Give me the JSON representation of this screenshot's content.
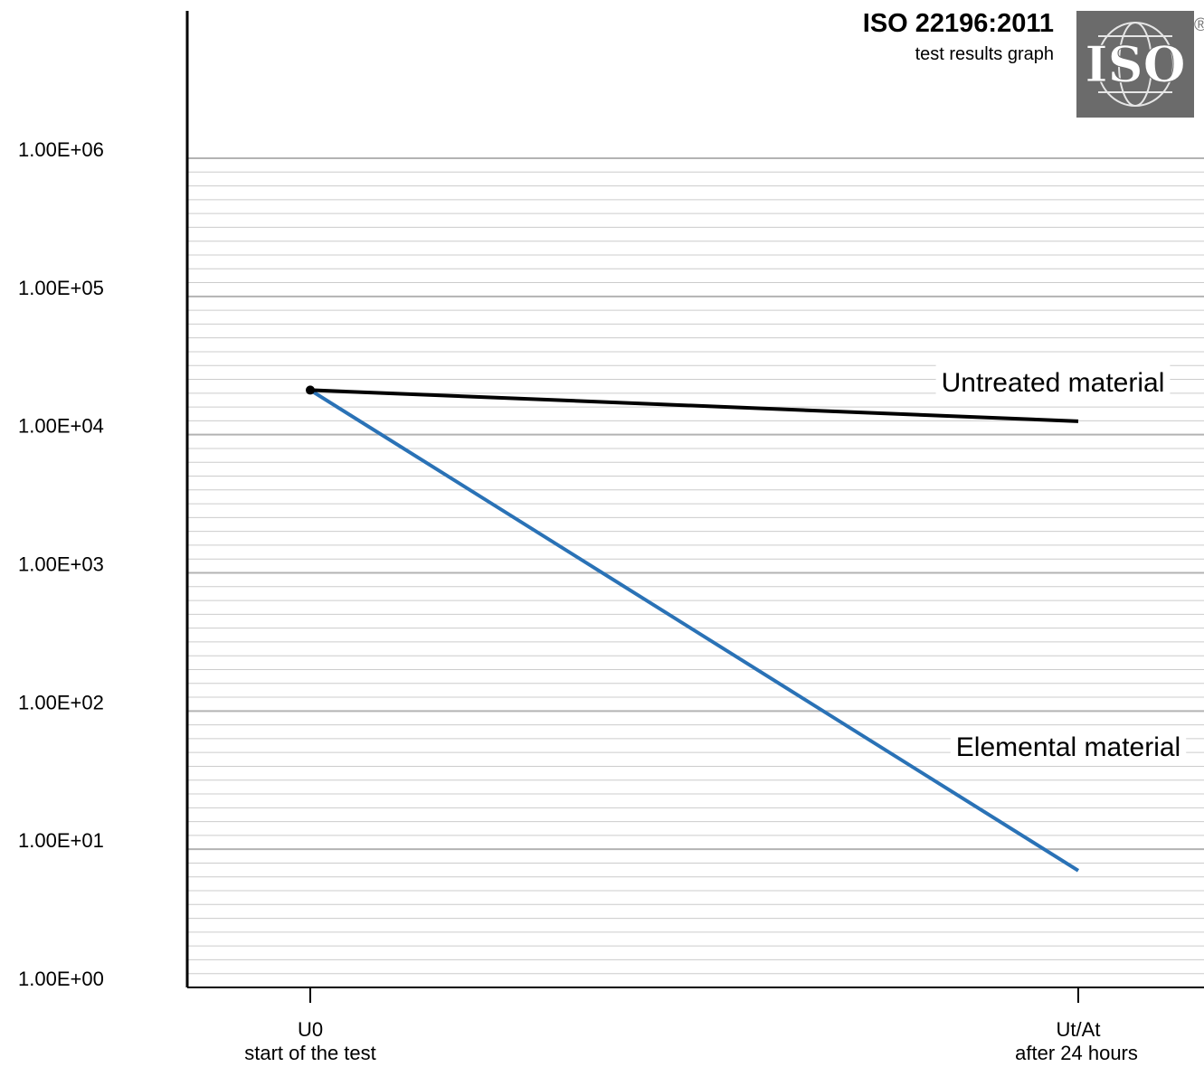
{
  "header": {
    "title": "ISO 22196:2011",
    "subtitle": "test results graph",
    "logo_text": "ISO",
    "logo_mark": "®",
    "logo_icon": "iso-globe-logo-icon"
  },
  "chart_data": {
    "type": "line",
    "title": "ISO 22196:2011",
    "subtitle": "test results graph",
    "xlabel": "",
    "ylabel": "",
    "y_scale": "log",
    "ylim": [
      1,
      1000000
    ],
    "y_tick_labels": [
      "1.00E+06",
      "1.00E+05",
      "1.00E+04",
      "1.00E+03",
      "1.00E+02",
      "1.00E+01",
      "1.00E+00"
    ],
    "y_tick_values": [
      1000000,
      100000,
      10000,
      1000,
      100,
      10,
      1
    ],
    "x_categories": [
      {
        "code": "U0",
        "desc": "start of the test"
      },
      {
        "code": "Ut/At",
        "desc": "after 24 hours"
      }
    ],
    "grid": true,
    "series": [
      {
        "name": "Untreated material",
        "values": [
          21000,
          12500
        ],
        "color": "#000000"
      },
      {
        "name": "Elemental material",
        "values": [
          21000,
          7
        ],
        "color": "#2a72b6"
      }
    ],
    "start_marker_color": "#000000"
  }
}
